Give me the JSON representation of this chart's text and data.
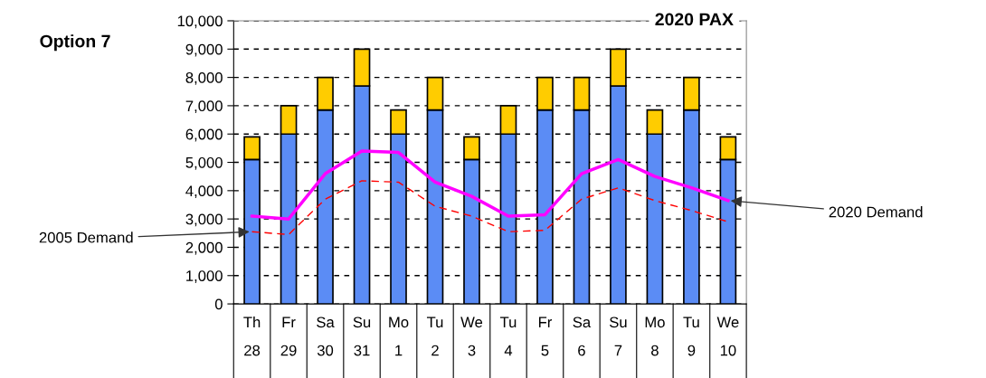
{
  "chart_data": {
    "type": "bar",
    "title": "Option 7",
    "subtitle": "2020 PAX",
    "categories": [
      "Th\n28",
      "Fr\n29",
      "Sa\n30",
      "Su\n31",
      "Mo\n1",
      "Tu\n2",
      "We\n3",
      "Tu\n4",
      "Fr\n5",
      "Sa\n6",
      "Su\n7",
      "Mo\n8",
      "Tu\n9",
      "We\n10"
    ],
    "stacked": true,
    "series": [
      {
        "color": "#5b8cf5",
        "values": [
          5100,
          6000,
          6850,
          7700,
          6000,
          6850,
          5100,
          6000,
          6850,
          6850,
          7700,
          6000,
          6850,
          5100
        ]
      },
      {
        "color": "#ffcc00",
        "values": [
          800,
          1000,
          1150,
          1300,
          850,
          1150,
          800,
          1000,
          1150,
          1150,
          1300,
          850,
          1150,
          800
        ]
      },
      {
        "type": "line",
        "color": "#ff00ff",
        "line_style": "solid",
        "values": [
          3100,
          3000,
          4600,
          5400,
          5350,
          4300,
          3800,
          3100,
          3150,
          4600,
          5100,
          4500,
          4100,
          3650
        ]
      },
      {
        "type": "line",
        "color": "#ff0000",
        "line_style": "dashed",
        "values": [
          2550,
          2450,
          3700,
          4350,
          4300,
          3450,
          3100,
          2550,
          2600,
          3700,
          4100,
          3650,
          3300,
          2900
        ]
      }
    ],
    "annotations": [
      {
        "text": "2005 Demand",
        "x": "Th\n28",
        "y": 2550
      },
      {
        "text": "2020 Demand",
        "x": "We\n10",
        "y": 3650
      }
    ],
    "ylim": [
      0,
      10000
    ],
    "yticks": [
      {
        "value": 0,
        "label": "0"
      },
      {
        "value": 1000,
        "label": "1,000"
      },
      {
        "value": 2000,
        "label": "2,000"
      },
      {
        "value": 3000,
        "label": "3,000"
      },
      {
        "value": 4000,
        "label": "4,000"
      },
      {
        "value": 5000,
        "label": "5,000"
      },
      {
        "value": 6000,
        "label": "6,000"
      },
      {
        "value": 7000,
        "label": "7,000"
      },
      {
        "value": 8000,
        "label": "8,000"
      },
      {
        "value": 9000,
        "label": "9,000"
      },
      {
        "value": 10000,
        "label": "10,000"
      }
    ],
    "grid": "y",
    "legend": false
  }
}
